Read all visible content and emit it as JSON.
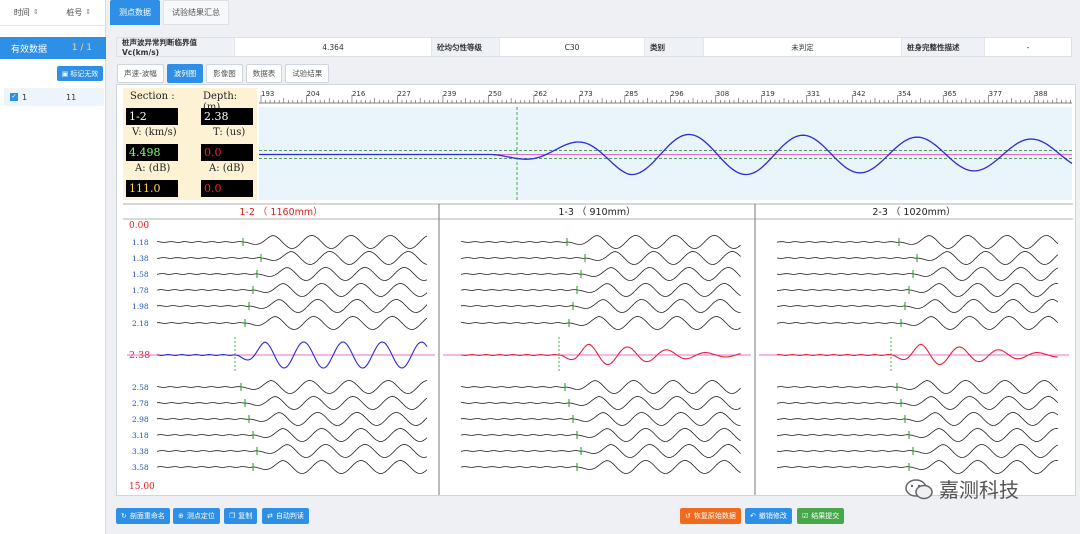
{
  "left_panel": {
    "header": {
      "col_time": "时间",
      "col_pile": "桩号"
    },
    "valid_label": "有效数据",
    "valid_count": "1 / 1",
    "mark_button": "标记无效",
    "rows": [
      {
        "index": "1",
        "value": "11"
      }
    ]
  },
  "top_tabs": [
    {
      "label": "测点数据"
    },
    {
      "label": "试验结果汇总"
    }
  ],
  "info": {
    "label1": "桩声波异常判断临界值Vc(km/s)",
    "value1": "4.364",
    "label2": "砼均匀性等级",
    "value2": "C30",
    "label3": "类别",
    "value3": "未判定",
    "label4": "桩身完整性描述",
    "value4": "-"
  },
  "sub_tabs": [
    {
      "label": "声速-波幅"
    },
    {
      "label": "波列图"
    },
    {
      "label": "影像图"
    },
    {
      "label": "数据表"
    },
    {
      "label": "试验结果"
    }
  ],
  "readout": {
    "section_label": "Section :",
    "section_value": "1-2",
    "depth_label": "Depth: (m)",
    "depth_value": "2.38",
    "v_label": "V: (km/s)",
    "v_value": "4.498",
    "t_label": "T: (us)",
    "t_value": "0.0",
    "a_label": "A: (dB)",
    "a_value": "111.0",
    "a2_label": "A: (dB)",
    "a2_value": "0.0"
  },
  "ruler_ticks": [
    "193",
    "204",
    "216",
    "227",
    "239",
    "250",
    "262",
    "273",
    "285",
    "296",
    "308",
    "319",
    "331",
    "342",
    "354",
    "365",
    "377",
    "388"
  ],
  "sections": [
    {
      "title": "1-2 （ 1160mm）",
      "color": "#e02020"
    },
    {
      "title": "1-3 （ 910mm）",
      "color": "#222222"
    },
    {
      "title": "2-3 （ 1020mm）",
      "color": "#222222"
    }
  ],
  "depths_top": "0.00",
  "depths": [
    "1.18",
    "1.38",
    "1.58",
    "1.78",
    "1.98",
    "2.18",
    "2.38",
    "2.58",
    "2.78",
    "2.98",
    "3.18",
    "3.38",
    "3.58"
  ],
  "depths_bottom": "15.00",
  "selected_depth": "2.38",
  "bottom_buttons": {
    "rename": "剖面重命名",
    "locate": "测点定位",
    "copy": "复制",
    "auto": "自动判读",
    "restore": "恢复原始数据",
    "undo": "撤销修改",
    "submit": "结果提交"
  },
  "watermark": "嘉测科技",
  "colors": {
    "accent": "#2d8fe6",
    "selected_trace_1": "#2b2bd9",
    "selected_trace_other": "#e8203a",
    "marker": "#1a9a1a",
    "pink_line": "#e040c0"
  }
}
